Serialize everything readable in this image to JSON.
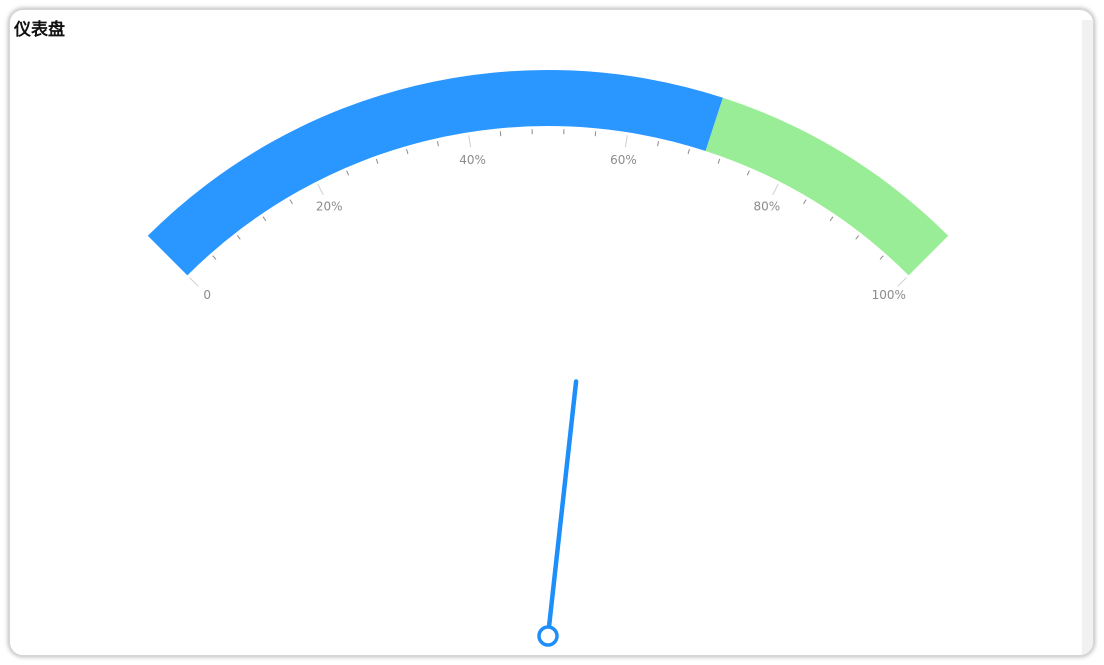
{
  "panel": {
    "title": "仪表盘"
  },
  "chart_data": {
    "type": "gauge",
    "min": 0,
    "max": 100,
    "value": 57,
    "unit": "%",
    "tick_labels": [
      "0",
      "20%",
      "40%",
      "60%",
      "80%",
      "100%"
    ],
    "bands": [
      {
        "from": 0,
        "to": 70,
        "color": "#2a96ff"
      },
      {
        "from": 70,
        "to": 100,
        "color": "#99ed96"
      }
    ],
    "needle_color": "#1e8ffa",
    "tick_color": "#8c8c8c"
  }
}
